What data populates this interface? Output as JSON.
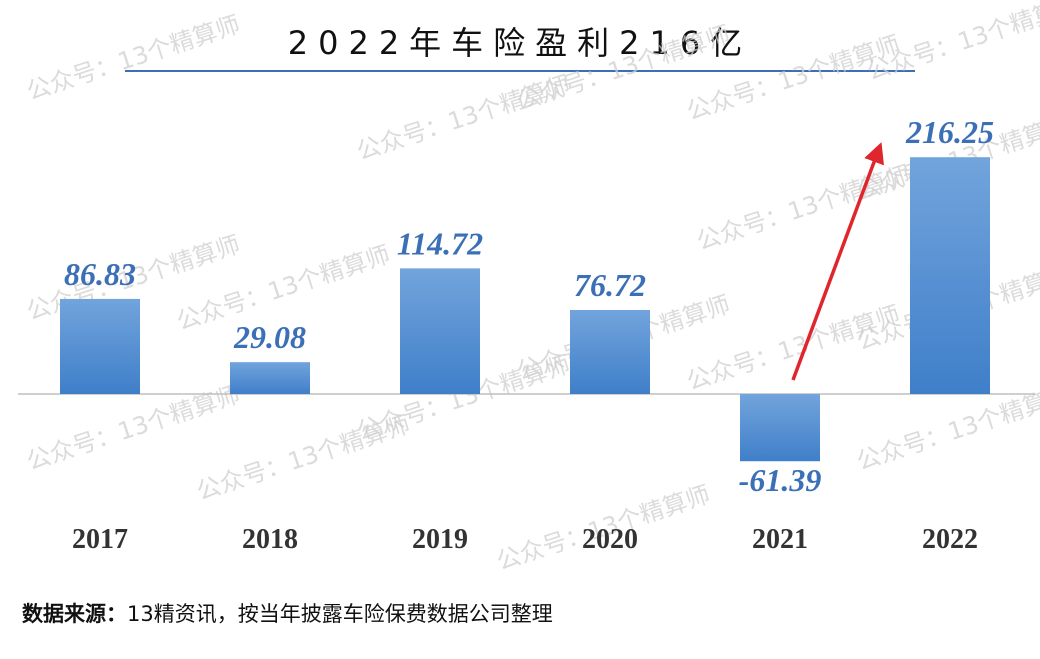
{
  "title": "2022年车险盈利216亿",
  "source": {
    "label": "数据来源：",
    "text": "13精资讯，按当年披露车险保费数据公司整理"
  },
  "watermark": "公众号：13个精算师",
  "colors": {
    "bar_top": "#72a4dc",
    "bar_bottom": "#3f7fc9",
    "label": "#3b6fb6",
    "arrow": "#e0262d",
    "axis": "#bfbfbf",
    "title_rule": "#3b6fb6"
  },
  "chart_data": {
    "type": "bar",
    "categories": [
      "2017",
      "2018",
      "2019",
      "2020",
      "2021",
      "2022"
    ],
    "values": [
      86.83,
      29.08,
      114.72,
      76.72,
      -61.39,
      216.25
    ],
    "data_labels": [
      "86.83",
      "29.08",
      "114.72",
      "76.72",
      "-61.39",
      "216.25"
    ],
    "title": "2022年车险盈利216亿",
    "xlabel": "",
    "ylabel": "",
    "ylim": [
      -80,
      230
    ],
    "grid": false,
    "legend": "none",
    "annotation": "red arrow rising from the 2021 bar to the 2022 bar"
  }
}
